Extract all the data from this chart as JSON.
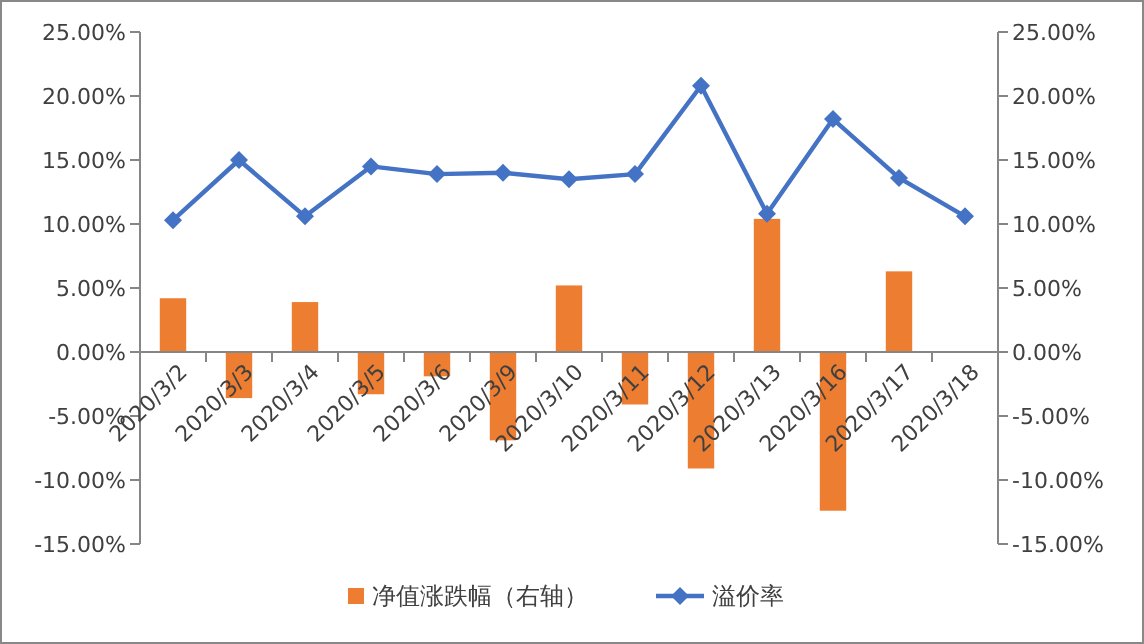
{
  "chart_data": {
    "type": "bar",
    "categories": [
      "2020/3/2",
      "2020/3/3",
      "2020/3/4",
      "2020/3/5",
      "2020/3/6",
      "2020/3/9",
      "2020/3/10",
      "2020/3/11",
      "2020/3/12",
      "2020/3/13",
      "2020/3/16",
      "2020/3/17",
      "2020/3/18"
    ],
    "series": [
      {
        "name": "净值涨跌幅（右轴）",
        "axis": "y2",
        "color": "#ed7d31",
        "values": [
          4.2,
          -3.6,
          3.9,
          -3.3,
          -1.9,
          -6.9,
          5.2,
          -4.1,
          -9.1,
          10.4,
          -12.4,
          6.3,
          null
        ]
      },
      {
        "name": "溢价率",
        "type": "line",
        "color": "#4472c4",
        "marker": "diamond",
        "values": [
          10.3,
          15.0,
          10.6,
          14.5,
          13.9,
          14.0,
          13.5,
          13.9,
          20.8,
          10.8,
          18.2,
          13.6,
          10.6
        ]
      }
    ],
    "ylim": [
      -15,
      25
    ],
    "yticks": [
      {
        "value": -15,
        "label": "-15.00%"
      },
      {
        "value": -10,
        "label": "-10.00%"
      },
      {
        "value": -5,
        "label": "-5.00%"
      },
      {
        "value": 0,
        "label": "0.00%"
      },
      {
        "value": 5,
        "label": "5.00%"
      },
      {
        "value": 10,
        "label": "10.00%"
      },
      {
        "value": 15,
        "label": "15.00%"
      },
      {
        "value": 20,
        "label": "20.00%"
      },
      {
        "value": 25,
        "label": "25.00%"
      }
    ],
    "y2lim": [
      -15,
      25
    ],
    "y2ticks": [
      {
        "value": -15,
        "label": "-15.00%"
      },
      {
        "value": -10,
        "label": "-10.00%"
      },
      {
        "value": -5,
        "label": "-5.00%"
      },
      {
        "value": 0,
        "label": "0.00%"
      },
      {
        "value": 5,
        "label": "5.00%"
      },
      {
        "value": 10,
        "label": "10.00%"
      },
      {
        "value": 15,
        "label": "15.00%"
      },
      {
        "value": 20,
        "label": "20.00%"
      },
      {
        "value": 25,
        "label": "25.00%"
      }
    ],
    "legend": "bottom",
    "grid": false
  }
}
